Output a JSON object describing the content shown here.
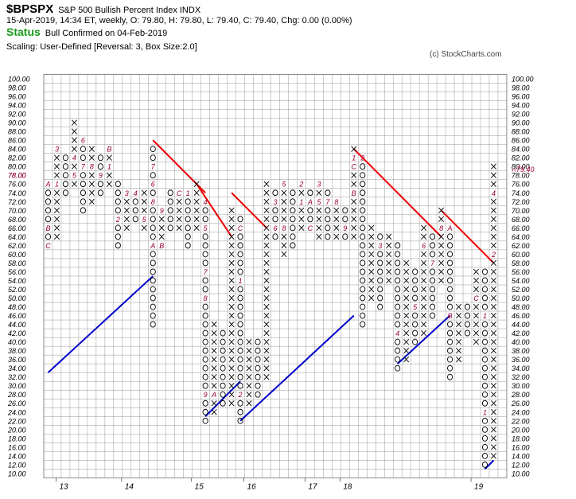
{
  "header": {
    "symbol": "$BPSPX",
    "name": "S&P 500 Bullish Percent Index  INDX",
    "ohlc": "15-Apr-2019, 14:34 ET, weekly, O: 79.80, H: 79.80, L: 79.40, C: 79.40, Chg: 0.00 (0.00%)",
    "status_label": "Status",
    "status_text": "Bull Confirmed on 04-Feb-2019",
    "scaling": "Scaling: User-Defined [Reversal: 3, Box Size:2.0]",
    "copyright": "(c) StockCharts.com"
  },
  "colors": {
    "x_mark": "#000000",
    "o_mark": "#000000",
    "month_marker": "#990033",
    "resistance_line": "#ee0000",
    "support_line": "#0000cc",
    "grid": "#999999",
    "current_price": "#aa0033"
  },
  "chart_data": {
    "type": "point-and-figure",
    "box_size": 2.0,
    "reversal": 3,
    "ylim": [
      10,
      100
    ],
    "y_ticks": [
      "100.00",
      "98.00",
      "96.00",
      "94.00",
      "92.00",
      "90.00",
      "88.00",
      "86.00",
      "84.00",
      "82.00",
      "80.00",
      "78.00",
      "76.00",
      "74.00",
      "72.00",
      "70.00",
      "68.00",
      "66.00",
      "64.00",
      "62.00",
      "60.00",
      "58.00",
      "56.00",
      "54.00",
      "52.00",
      "50.00",
      "48.00",
      "46.00",
      "44.00",
      "42.00",
      "40.00",
      "38.00",
      "36.00",
      "34.00",
      "32.00",
      "30.00",
      "28.00",
      "26.00",
      "24.00",
      "22.00",
      "20.00",
      "18.00",
      "16.00",
      "14.00",
      "12.00",
      "10.00"
    ],
    "left_current_label": "78.00",
    "right_current_label": "79.40",
    "year_labels": [
      {
        "label": "13",
        "col": 0.5
      },
      {
        "label": "14",
        "col": 8
      },
      {
        "label": "15",
        "col": 16
      },
      {
        "label": "16",
        "col": 22
      },
      {
        "label": "17",
        "col": 29
      },
      {
        "label": "18",
        "col": 33
      },
      {
        "label": "19",
        "col": 48
      }
    ],
    "columns": [
      {
        "t": "O",
        "hi": 76,
        "lo": 62,
        "m": {
          "76": "A",
          "66": "B",
          "62": "C"
        }
      },
      {
        "t": "X",
        "hi": 84,
        "lo": 64,
        "m": {
          "84": "3",
          "76": "1",
          "62": "C"
        }
      },
      {
        "t": "O",
        "hi": 82,
        "lo": 74
      },
      {
        "t": "X",
        "hi": 90,
        "lo": 76,
        "m": {
          "82": "4",
          "78": "5"
        }
      },
      {
        "t": "O",
        "hi": 86,
        "lo": 70,
        "m": {
          "86": "6",
          "80": "7"
        }
      },
      {
        "t": "X",
        "hi": 84,
        "lo": 72,
        "m": {
          "80": "8"
        }
      },
      {
        "t": "O",
        "hi": 82,
        "lo": 74,
        "m": {
          "78": "9"
        }
      },
      {
        "t": "X",
        "hi": 84,
        "lo": 76,
        "m": {
          "84": "B",
          "80": "1"
        }
      },
      {
        "t": "O",
        "hi": 76,
        "lo": 62,
        "m": {
          "68": "2"
        }
      },
      {
        "t": "X",
        "hi": 74,
        "lo": 66,
        "m": {
          "74": "3"
        }
      },
      {
        "t": "O",
        "hi": 74,
        "lo": 68,
        "m": {
          "74": "4"
        }
      },
      {
        "t": "X",
        "hi": 74,
        "lo": 66,
        "m": {
          "68": "5"
        }
      },
      {
        "t": "O",
        "hi": 84,
        "lo": 44,
        "m": {
          "76": "6",
          "80": "7",
          "72": "8",
          "62": "A"
        }
      },
      {
        "t": "X",
        "hi": 70,
        "lo": 62,
        "m": {
          "70": "9",
          "62": "B"
        }
      },
      {
        "t": "O",
        "hi": 74,
        "lo": 66
      },
      {
        "t": "X",
        "hi": 74,
        "lo": 66,
        "m": {
          "74": "C"
        }
      },
      {
        "t": "O",
        "hi": 74,
        "lo": 62,
        "m": {
          "74": "1",
          "60": "2"
        }
      },
      {
        "t": "X",
        "hi": 76,
        "lo": 66
      },
      {
        "t": "O",
        "hi": 72,
        "lo": 22,
        "m": {
          "72": "4",
          "66": "5",
          "56": "7",
          "50": "8",
          "28": "9"
        }
      },
      {
        "t": "X",
        "hi": 44,
        "lo": 24,
        "m": {
          "28": "A"
        }
      },
      {
        "t": "O",
        "hi": 42,
        "lo": 26,
        "m": {
          "68": "B"
        }
      },
      {
        "t": "X",
        "hi": 70,
        "lo": 26
      },
      {
        "t": "O",
        "hi": 68,
        "lo": 22,
        "m": {
          "66": "C",
          "54": "1",
          "28": "2"
        }
      },
      {
        "t": "X",
        "hi": 40,
        "lo": 26
      },
      {
        "t": "O",
        "hi": 40,
        "lo": 28
      },
      {
        "t": "X",
        "hi": 76,
        "lo": 32
      },
      {
        "t": "O",
        "hi": 74,
        "lo": 64,
        "m": {
          "72": "3",
          "66": "6",
          "62": "7"
        }
      },
      {
        "t": "X",
        "hi": 76,
        "lo": 60,
        "m": {
          "76": "5",
          "66": "8"
        }
      },
      {
        "t": "O",
        "hi": 74,
        "lo": 62
      },
      {
        "t": "X",
        "hi": 76,
        "lo": 66,
        "m": {
          "72": "1",
          "76": "2"
        }
      },
      {
        "t": "O",
        "hi": 74,
        "lo": 66,
        "m": {
          "72": "A",
          "66": "C",
          "62": "B"
        }
      },
      {
        "t": "X",
        "hi": 76,
        "lo": 64,
        "m": {
          "72": "5",
          "76": "3"
        }
      },
      {
        "t": "O",
        "hi": 74,
        "lo": 64,
        "m": {
          "72": "7"
        }
      },
      {
        "t": "X",
        "hi": 72,
        "lo": 64,
        "m": {
          "72": "8"
        }
      },
      {
        "t": "O",
        "hi": 70,
        "lo": 64,
        "m": {
          "66": "9"
        }
      },
      {
        "t": "X",
        "hi": 84,
        "lo": 64,
        "m": {
          "82": "1",
          "80": "C",
          "74": "B"
        }
      },
      {
        "t": "O",
        "hi": 82,
        "lo": 44,
        "m": {
          "82": "2"
        }
      },
      {
        "t": "X",
        "hi": 66,
        "lo": 50
      },
      {
        "t": "O",
        "hi": 64,
        "lo": 48,
        "m": {
          "62": "3"
        }
      },
      {
        "t": "X",
        "hi": 64,
        "lo": 54
      },
      {
        "t": "O",
        "hi": 62,
        "lo": 34,
        "m": {
          "42": "4"
        }
      },
      {
        "t": "X",
        "hi": 58,
        "lo": 36
      },
      {
        "t": "O",
        "hi": 56,
        "lo": 40,
        "m": {
          "48": "5"
        }
      },
      {
        "t": "X",
        "hi": 66,
        "lo": 42,
        "m": {
          "62": "6"
        }
      },
      {
        "t": "O",
        "hi": 64,
        "lo": 46,
        "m": {
          "58": "7"
        }
      },
      {
        "t": "X",
        "hi": 70,
        "lo": 54,
        "m": {
          "66": "8"
        }
      },
      {
        "t": "O",
        "hi": 66,
        "lo": 32,
        "m": {
          "66": "A",
          "46": "B"
        }
      },
      {
        "t": "X",
        "hi": 48,
        "lo": 36
      },
      {
        "t": "O",
        "hi": 48,
        "lo": 42
      },
      {
        "t": "X",
        "hi": 56,
        "lo": 40,
        "m": {
          "50": "C"
        }
      },
      {
        "t": "O",
        "hi": 56,
        "lo": 12,
        "m": {
          "46": "1",
          "24": "1"
        }
      },
      {
        "t": "X",
        "hi": 80,
        "lo": 14,
        "m": {
          "74": "4",
          "60": "2"
        }
      }
    ],
    "trendlines": [
      {
        "kind": "support",
        "from": [
          0,
          33
        ],
        "to": [
          12,
          55
        ]
      },
      {
        "kind": "resistance",
        "from": [
          12,
          86
        ],
        "to": [
          18,
          74
        ]
      },
      {
        "kind": "resistance",
        "from": [
          17,
          76
        ],
        "to": [
          21,
          64
        ]
      },
      {
        "kind": "support",
        "from": [
          18,
          23
        ],
        "to": [
          22,
          31
        ]
      },
      {
        "kind": "resistance",
        "from": [
          21,
          74
        ],
        "to": [
          25,
          66
        ]
      },
      {
        "kind": "support",
        "from": [
          22,
          22
        ],
        "to": [
          35,
          46
        ]
      },
      {
        "kind": "resistance",
        "from": [
          35,
          84
        ],
        "to": [
          45,
          64
        ]
      },
      {
        "kind": "support",
        "from": [
          40,
          35
        ],
        "to": [
          46,
          46
        ]
      },
      {
        "kind": "resistance",
        "from": [
          45,
          70
        ],
        "to": [
          51,
          58
        ]
      },
      {
        "kind": "support",
        "from": [
          50,
          11
        ],
        "to": [
          51,
          13
        ]
      }
    ]
  }
}
